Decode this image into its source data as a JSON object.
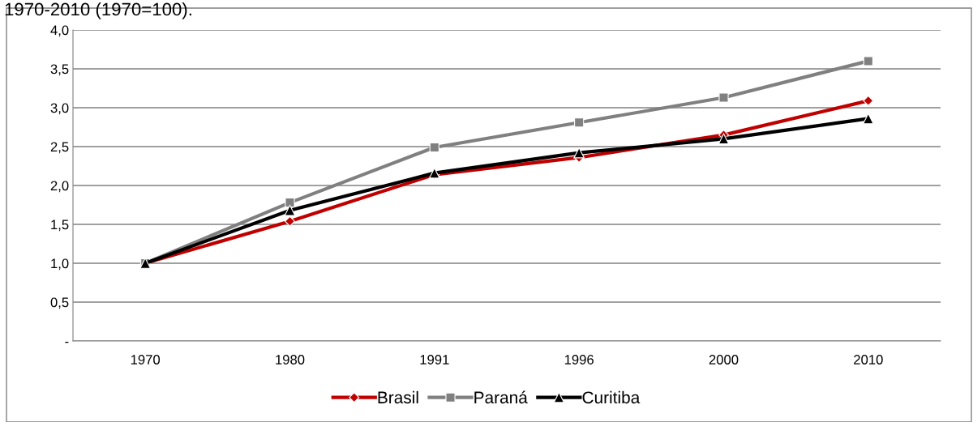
{
  "chart_data": {
    "type": "line",
    "title": "1970-2010 (1970=100).",
    "categories": [
      "1970",
      "1980",
      "1991",
      "1996",
      "2000",
      "2010"
    ],
    "series": [
      {
        "name": "Brasil",
        "color": "#c00000",
        "marker": "diamond",
        "values": [
          1.0,
          1.54,
          2.14,
          2.36,
          2.65,
          3.09
        ]
      },
      {
        "name": "Paraná",
        "color": "#808080",
        "marker": "square",
        "values": [
          1.0,
          1.78,
          2.49,
          2.81,
          3.13,
          3.6
        ]
      },
      {
        "name": "Curitiba",
        "color": "#000000",
        "marker": "triangle",
        "values": [
          1.0,
          1.68,
          2.16,
          2.42,
          2.6,
          2.86
        ]
      }
    ],
    "ylim": [
      0,
      4
    ],
    "yticks": [
      {
        "value": 0,
        "label": "-"
      },
      {
        "value": 0.5,
        "label": "0,5"
      },
      {
        "value": 1,
        "label": "1,0"
      },
      {
        "value": 1.5,
        "label": "1,5"
      },
      {
        "value": 2,
        "label": "2,0"
      },
      {
        "value": 2.5,
        "label": "2,5"
      },
      {
        "value": 3,
        "label": "3,0"
      },
      {
        "value": 3.5,
        "label": "3,5"
      },
      {
        "value": 4,
        "label": "4,0"
      }
    ],
    "grid": "y",
    "legend": "bottom"
  }
}
